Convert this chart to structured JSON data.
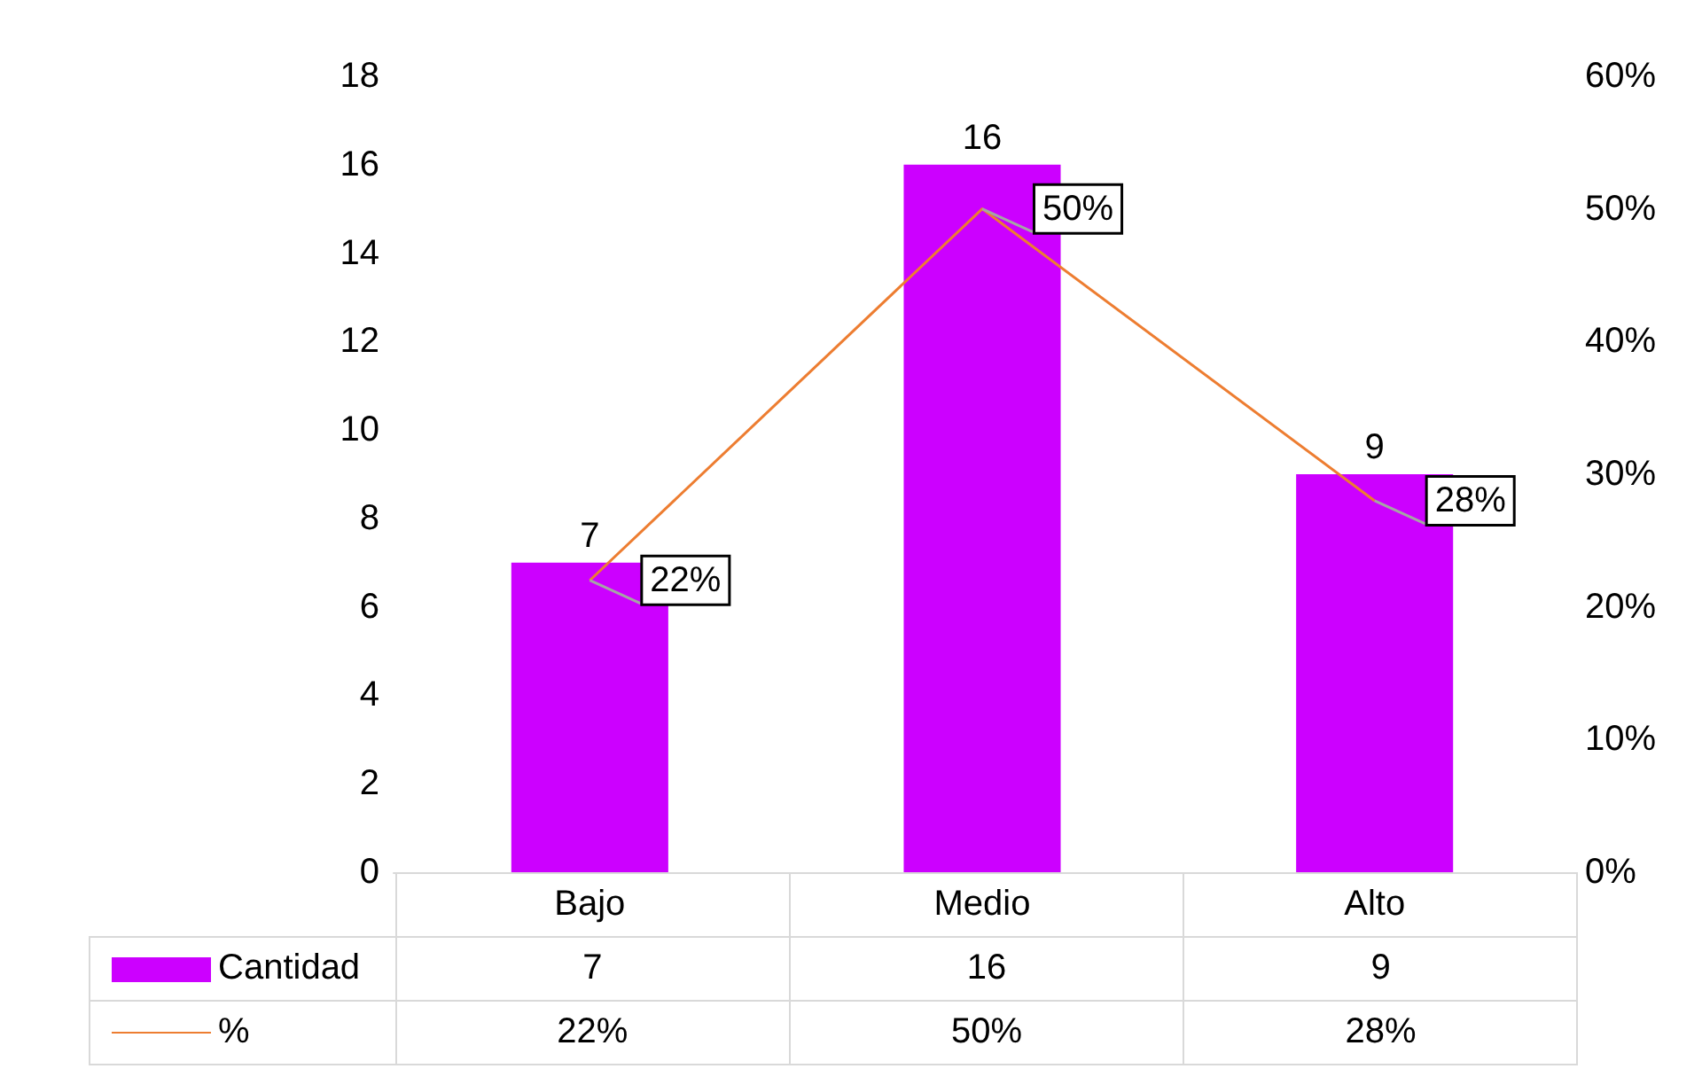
{
  "chart_data": {
    "type": "bar",
    "categories": [
      "Bajo",
      "Medio",
      "Alto"
    ],
    "series": [
      {
        "name": "Cantidad",
        "color": "#cc00ff",
        "values": [
          7,
          16,
          9
        ],
        "value_labels": [
          "7",
          "16",
          "9"
        ]
      },
      {
        "name": "%",
        "type": "line",
        "axis": "y2",
        "color": "#ed7d31",
        "values": [
          22,
          50,
          28
        ],
        "value_labels": [
          "22%",
          "50%",
          "28%"
        ]
      }
    ],
    "ylim": [
      0,
      18
    ],
    "yticks": [
      0,
      2,
      4,
      6,
      8,
      10,
      12,
      14,
      16,
      18
    ],
    "y2lim": [
      0,
      60
    ],
    "y2ticks": [
      {
        "value": 0,
        "label": "0%"
      },
      {
        "value": 10,
        "label": "10%"
      },
      {
        "value": 20,
        "label": "20%"
      },
      {
        "value": 30,
        "label": "30%"
      },
      {
        "value": 40,
        "label": "40%"
      },
      {
        "value": 50,
        "label": "50%"
      },
      {
        "value": 60,
        "label": "60%"
      }
    ],
    "grid": false,
    "legend": "bottom",
    "marker": "none",
    "line_style": "solid"
  }
}
